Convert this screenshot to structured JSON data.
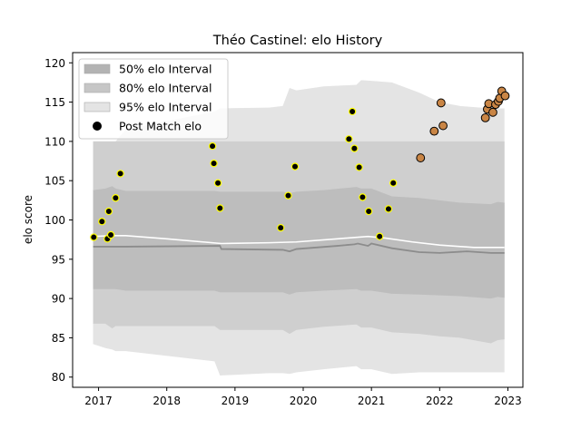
{
  "chart_data": {
    "type": "scatter",
    "title": "Théo Castinel: elo History",
    "xlabel": "",
    "ylabel": "elo score",
    "xlim": [
      2016.62,
      2023.22
    ],
    "ylim": [
      78.7,
      121.3
    ],
    "x_ticks": [
      2017,
      2018,
      2019,
      2020,
      2021,
      2022,
      2023
    ],
    "x_tick_labels": [
      "2017",
      "2018",
      "2019",
      "2020",
      "2021",
      "2022",
      "2023"
    ],
    "y_ticks": [
      80,
      85,
      90,
      95,
      100,
      105,
      110,
      115,
      120
    ],
    "y_tick_labels": [
      "80",
      "85",
      "90",
      "95",
      "100",
      "105",
      "110",
      "115",
      "120"
    ],
    "grid": false,
    "legend_position": "top-left",
    "legend": [
      {
        "label": "50% elo Interval",
        "kind": "band",
        "color": "#b3b3b3"
      },
      {
        "label": "80% elo Interval",
        "kind": "band",
        "color": "#c6c6c6"
      },
      {
        "label": "95% elo Interval",
        "kind": "band",
        "color": "#e4e4e4"
      },
      {
        "label": "Post Match elo",
        "kind": "marker",
        "color": "#000000"
      }
    ],
    "colors": {
      "band50": "#bdbdbd",
      "band80": "#cfcfcf",
      "band95": "#e4e4e4",
      "median_line": "#8c8c8c",
      "mean_line": "#ffffff",
      "point_fill_early": "#000000",
      "point_edge_early": "#ffff00",
      "point_fill_recent": "#c98545",
      "point_edge_recent": "#000000"
    },
    "bands": {
      "x": [
        2016.92,
        2017.1,
        2017.2,
        2017.25,
        2017.4,
        2018.7,
        2018.78,
        2019.5,
        2019.7,
        2019.8,
        2019.9,
        2020.3,
        2020.78,
        2020.85,
        2021.0,
        2021.3,
        2021.7,
        2022.0,
        2022.3,
        2022.75,
        2022.85,
        2022.95
      ],
      "p95_upper": [
        110.0,
        110.0,
        110.0,
        110.0,
        111.5,
        113.8,
        114.2,
        114.3,
        114.5,
        116.8,
        116.5,
        117.0,
        117.2,
        117.8,
        117.7,
        117.5,
        116.2,
        115.0,
        114.5,
        114.2,
        114.2,
        114.2
      ],
      "p80_upper": [
        110.0,
        110.0,
        110.0,
        110.0,
        110.0,
        110.0,
        110.0,
        110.0,
        110.0,
        110.0,
        110.0,
        110.0,
        110.0,
        110.0,
        110.0,
        110.0,
        110.0,
        110.0,
        110.0,
        110.0,
        110.0,
        110.0
      ],
      "p50_upper": [
        103.8,
        104.0,
        104.3,
        104.0,
        103.7,
        103.7,
        103.6,
        103.6,
        103.6,
        103.4,
        103.6,
        103.8,
        104.2,
        104.0,
        104.0,
        103.0,
        102.8,
        102.5,
        102.2,
        102.0,
        102.3,
        102.2
      ],
      "p50_lower": [
        91.2,
        91.2,
        91.2,
        91.2,
        91.0,
        91.0,
        90.8,
        90.8,
        90.8,
        90.5,
        90.8,
        91.0,
        91.2,
        91.0,
        91.0,
        90.6,
        90.5,
        90.4,
        90.3,
        90.0,
        90.2,
        90.1
      ],
      "p80_lower": [
        86.8,
        86.8,
        86.2,
        86.5,
        86.5,
        86.5,
        86.0,
        86.0,
        86.0,
        85.5,
        86.0,
        86.4,
        86.7,
        86.3,
        86.3,
        85.7,
        85.5,
        85.2,
        85.0,
        84.3,
        84.7,
        84.8
      ],
      "p95_lower": [
        84.2,
        83.7,
        83.5,
        83.3,
        83.3,
        82.0,
        80.2,
        80.5,
        80.5,
        80.4,
        80.6,
        81.0,
        81.4,
        81.0,
        81.0,
        80.4,
        80.6,
        80.6,
        80.6,
        80.6,
        80.6,
        80.6
      ]
    },
    "median_line": {
      "x": [
        2016.92,
        2017.4,
        2018.78,
        2018.8,
        2019.7,
        2019.8,
        2019.9,
        2020.5,
        2020.75,
        2020.8,
        2020.95,
        2021.0,
        2021.3,
        2021.7,
        2022.0,
        2022.4,
        2022.75,
        2022.95
      ],
      "y": [
        96.6,
        96.6,
        96.7,
        96.3,
        96.2,
        96.0,
        96.3,
        96.7,
        96.9,
        97.0,
        96.7,
        97.0,
        96.4,
        95.9,
        95.8,
        96.0,
        95.8,
        95.8
      ]
    },
    "mean_line": {
      "x": [
        2016.92,
        2017.2,
        2017.4,
        2018.0,
        2018.8,
        2019.5,
        2019.9,
        2020.5,
        2020.95,
        2021.2,
        2021.6,
        2022.0,
        2022.5,
        2022.95
      ],
      "y": [
        97.9,
        98.0,
        98.0,
        97.6,
        97.0,
        97.1,
        97.2,
        97.6,
        97.9,
        97.7,
        97.2,
        96.8,
        96.5,
        96.5
      ]
    },
    "series": [
      {
        "name": "Post Match elo",
        "points": [
          [
            2016.93,
            97.8
          ],
          [
            2017.05,
            99.8
          ],
          [
            2017.13,
            97.6
          ],
          [
            2017.15,
            101.1
          ],
          [
            2017.18,
            98.1
          ],
          [
            2017.25,
            102.8
          ],
          [
            2017.32,
            105.9
          ],
          [
            2018.67,
            109.4
          ],
          [
            2018.69,
            107.2
          ],
          [
            2018.75,
            104.7
          ],
          [
            2018.78,
            101.5
          ],
          [
            2019.67,
            99.0
          ],
          [
            2019.78,
            103.1
          ],
          [
            2019.88,
            106.8
          ],
          [
            2020.67,
            110.3
          ],
          [
            2020.72,
            113.8
          ],
          [
            2020.75,
            109.1
          ],
          [
            2020.82,
            106.7
          ],
          [
            2020.87,
            102.9
          ],
          [
            2020.96,
            101.1
          ],
          [
            2021.12,
            97.9
          ],
          [
            2021.25,
            101.4
          ],
          [
            2021.32,
            104.7
          ],
          [
            2021.72,
            107.9
          ],
          [
            2021.92,
            111.3
          ],
          [
            2022.02,
            114.9
          ],
          [
            2022.05,
            112.0
          ],
          [
            2022.67,
            113.0
          ],
          [
            2022.7,
            114.1
          ],
          [
            2022.72,
            114.8
          ],
          [
            2022.78,
            113.7
          ],
          [
            2022.82,
            114.7
          ],
          [
            2022.86,
            115.1
          ],
          [
            2022.88,
            115.5
          ],
          [
            2022.91,
            116.4
          ],
          [
            2022.96,
            115.8
          ]
        ],
        "recent_from_index": 23
      }
    ]
  }
}
